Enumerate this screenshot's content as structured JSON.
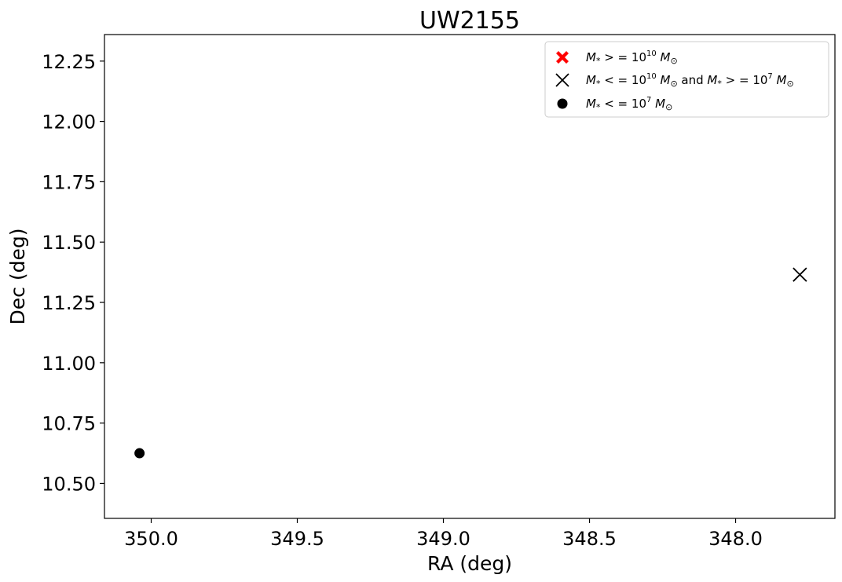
{
  "chart_data": {
    "type": "scatter",
    "title": "UW2155",
    "xlabel": "RA (deg)",
    "ylabel": "Dec (deg)",
    "x_inverted": true,
    "xlim": [
      350.16,
      347.66
    ],
    "ylim": [
      10.355,
      12.36
    ],
    "xticks": [
      350.0,
      349.5,
      349.0,
      348.5,
      348.0,
      347.5
    ],
    "xtick_labels": [
      "350.0",
      "349.5",
      "349.0",
      "348.5",
      "348.0",
      "347.5"
    ],
    "yticks": [
      10.5,
      10.75,
      11.0,
      11.25,
      11.5,
      11.75,
      12.0,
      12.25
    ],
    "ytick_labels": [
      "10.50",
      "10.75",
      "11.00",
      "11.25",
      "11.50",
      "11.75",
      "12.00",
      "12.25"
    ],
    "grid": false,
    "legend_position": "top-right",
    "series": [
      {
        "name": "M* >= 10^10 M⊙",
        "marker": "filled-x",
        "color": "#ff0000",
        "points": []
      },
      {
        "name": "M* <= 10^10 M⊙ and M* >= 10^7 M⊙",
        "marker": "x",
        "color": "#000000",
        "points": [
          {
            "x": 347.78,
            "y": 11.365
          }
        ]
      },
      {
        "name": "M* <= 10^7 M⊙",
        "marker": "circle",
        "color": "#000000",
        "points": [
          {
            "x": 350.04,
            "y": 10.625
          }
        ]
      }
    ]
  }
}
